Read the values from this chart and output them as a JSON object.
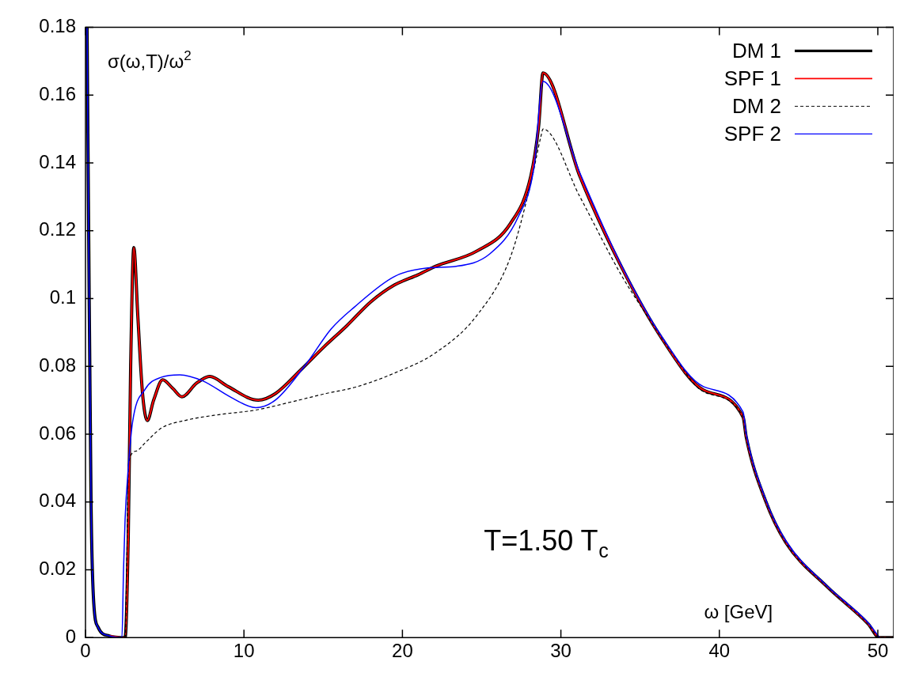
{
  "chart_data": {
    "type": "line",
    "xlabel": "ω [GeV]",
    "ylabel": "σ(ω,T)/ω$^{2}$",
    "annotations": [
      "T=1.50 T$_{c}$"
    ],
    "xlim": [
      0,
      51
    ],
    "ylim": [
      0,
      0.18
    ],
    "xticks": [
      0,
      10,
      20,
      30,
      40,
      50
    ],
    "yticks": [
      0,
      0.02,
      0.04,
      0.06,
      0.08,
      0.1,
      0.12,
      0.14,
      0.16,
      0.18
    ],
    "grid": false,
    "legend": "top right",
    "marker": "none",
    "series": [
      {
        "name": "DM 1",
        "color": "#000000",
        "line_style": "solid",
        "x": [
          0.1,
          0.2,
          0.35,
          0.5,
          0.8,
          1.5,
          2.5,
          2.7,
          2.85,
          3.05,
          3.3,
          3.6,
          3.9,
          4.3,
          4.87,
          5.5,
          6.09,
          7,
          7.85,
          9,
          10.9,
          12,
          13.6,
          15,
          16.5,
          18,
          19.5,
          21,
          22.1,
          24.7,
          26.8,
          28.1,
          28.6,
          28.87,
          31.2,
          33.8,
          36.4,
          39,
          41.5,
          41.7,
          42.9,
          44.2,
          46.8,
          49.4,
          50.1,
          51
        ],
        "values": [
          0.18,
          0.12,
          0.04,
          0.012,
          0.003,
          0.0005,
          0,
          0.03,
          0.08,
          0.115,
          0.095,
          0.072,
          0.064,
          0.07,
          0.076,
          0.0735,
          0.071,
          0.075,
          0.077,
          0.074,
          0.07,
          0.072,
          0.079,
          0.0855,
          0.092,
          0.099,
          0.104,
          0.107,
          0.1095,
          0.114,
          0.122,
          0.136,
          0.151,
          0.1665,
          0.136,
          0.1095,
          0.088,
          0.073,
          0.065,
          0.059,
          0.0405,
          0.028,
          0.015,
          0.004,
          0,
          0
        ]
      },
      {
        "name": "SPF 1",
        "color": "#ff0000",
        "line_style": "solid",
        "x": [
          1.5,
          2.5,
          2.7,
          2.85,
          3.05,
          3.3,
          3.6,
          3.9,
          4.3,
          4.87,
          5.5,
          6.09,
          7,
          7.85,
          9,
          10.9,
          12,
          13.6,
          15,
          16.5,
          18,
          19.5,
          21,
          22.1,
          24.7,
          26.8,
          28.1,
          28.6,
          28.87,
          31.2,
          33.8,
          36.4,
          39,
          41.5,
          41.7,
          42.9,
          44.2,
          46.8,
          49.4,
          50.1,
          51
        ],
        "values": [
          0.0005,
          0,
          0.03,
          0.08,
          0.115,
          0.095,
          0.072,
          0.064,
          0.07,
          0.076,
          0.0735,
          0.071,
          0.075,
          0.077,
          0.074,
          0.07,
          0.072,
          0.079,
          0.0855,
          0.092,
          0.099,
          0.104,
          0.107,
          0.1095,
          0.114,
          0.122,
          0.136,
          0.151,
          0.1665,
          0.136,
          0.1095,
          0.088,
          0.073,
          0.065,
          0.059,
          0.0405,
          0.028,
          0.015,
          0.004,
          0,
          0
        ]
      },
      {
        "name": "DM 2",
        "color": "#000000",
        "line_style": "dashed",
        "x": [
          0.1,
          0.2,
          0.35,
          0.5,
          0.8,
          1.5,
          2.5,
          2.6,
          2.72,
          3.2,
          3.76,
          4.8,
          6.35,
          8.5,
          10.75,
          13,
          15.2,
          17,
          19.5,
          22.1,
          24.7,
          26.8,
          28.1,
          28.75,
          28.87,
          31.2,
          33.8,
          35.6,
          37,
          39,
          41.5,
          41.7,
          42.9,
          44.2,
          46.8,
          49.4,
          50.1,
          51
        ],
        "values": [
          0.18,
          0.12,
          0.04,
          0.012,
          0.003,
          0.0005,
          0,
          0.02,
          0.0514,
          0.055,
          0.0574,
          0.0618,
          0.0641,
          0.0658,
          0.0671,
          0.0695,
          0.072,
          0.0738,
          0.078,
          0.084,
          0.095,
          0.112,
          0.134,
          0.148,
          0.15,
          0.13,
          0.107,
          0.0938,
          0.084,
          0.0725,
          0.065,
          0.059,
          0.0405,
          0.028,
          0.015,
          0.004,
          0,
          0
        ]
      },
      {
        "name": "SPF 2",
        "color": "#0000ff",
        "line_style": "solid",
        "x": [
          0.1,
          0.2,
          0.35,
          0.5,
          0.8,
          1.5,
          2.3,
          2.4,
          2.5,
          2.7,
          2.97,
          3.76,
          4.8,
          5.95,
          7.4,
          9.2,
          10.75,
          12,
          13.9,
          15.5,
          16.95,
          19.5,
          21.6,
          23.4,
          25.5,
          27.3,
          28.3,
          28.87,
          31.2,
          33.8,
          36.4,
          39,
          41.5,
          41.7,
          42.9,
          44.2,
          46.8,
          49.4,
          50.1
        ],
        "values": [
          0.18,
          0.12,
          0.04,
          0.012,
          0.003,
          0.0005,
          0,
          0.02,
          0.035,
          0.05,
          0.0635,
          0.0732,
          0.0768,
          0.0775,
          0.0757,
          0.0708,
          0.0678,
          0.0701,
          0.0805,
          0.091,
          0.0974,
          0.1065,
          0.109,
          0.1095,
          0.1131,
          0.124,
          0.1386,
          0.164,
          0.137,
          0.11,
          0.0885,
          0.074,
          0.0665,
          0.06,
          0.041,
          0.0285,
          0.0152,
          0.0043,
          0
        ]
      }
    ]
  }
}
